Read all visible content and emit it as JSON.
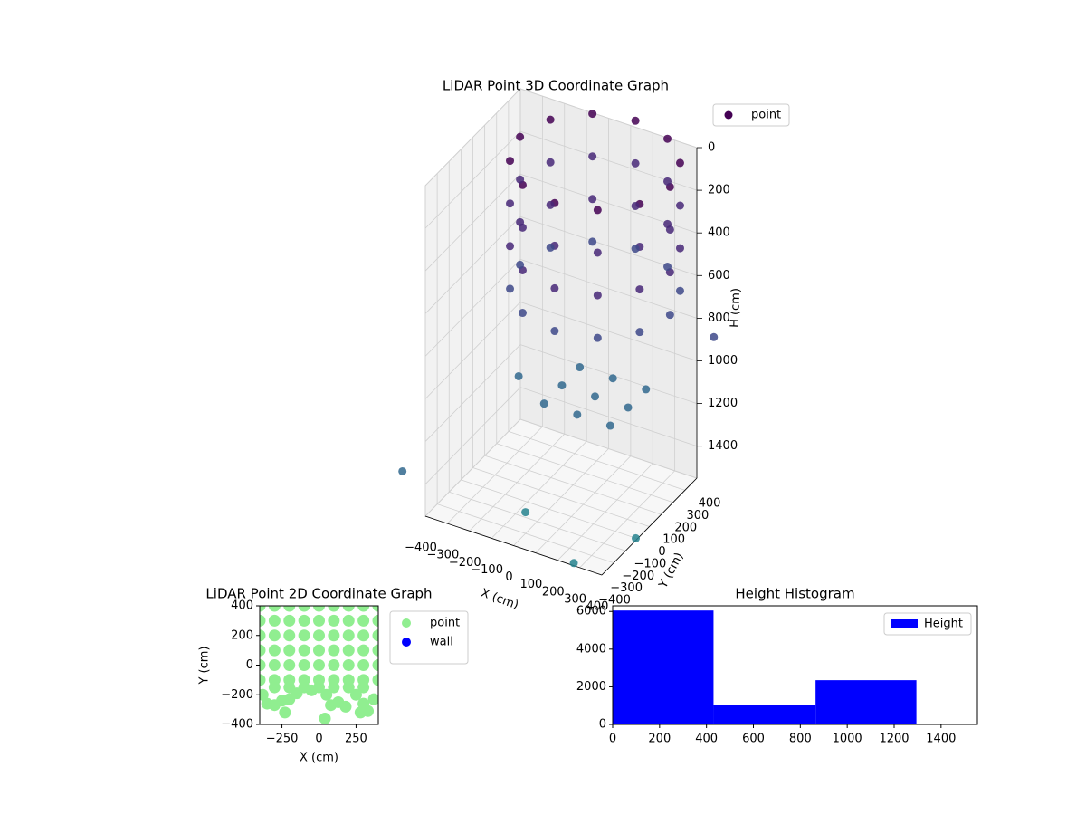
{
  "chart_data": [
    {
      "type": "scatter3d",
      "title": "LiDAR Point 3D Coordinate Graph",
      "xlabel": "X (cm)",
      "ylabel": "Y (cm)",
      "zlabel": "H (cm)",
      "colormap": "viridis",
      "legend": "upper right",
      "grid": true,
      "z_inverted": true,
      "xlim": [
        -400,
        400
      ],
      "ylim": [
        -400,
        400
      ],
      "zlim": [
        0,
        1550
      ],
      "xticks": [
        {
          "value": -400,
          "label": "−400"
        },
        {
          "value": -300,
          "label": "−300"
        },
        {
          "value": -200,
          "label": "−200"
        },
        {
          "value": -100,
          "label": "−100"
        },
        0,
        100,
        200,
        300,
        400
      ],
      "yticks": [
        {
          "value": -400,
          "label": "−400"
        },
        {
          "value": -300,
          "label": "−300"
        },
        {
          "value": -200,
          "label": "−200"
        },
        {
          "value": -100,
          "label": "−100"
        },
        0,
        100,
        200,
        300,
        400
      ],
      "zticks": [
        0,
        200,
        400,
        600,
        800,
        1000,
        1200,
        1400
      ],
      "series": [
        {
          "name": "point",
          "x": [
            440,
            394,
            270,
            100,
            -70,
            -194,
            -240,
            -194,
            -70,
            100,
            270,
            394,
            440,
            394,
            270,
            100,
            -70,
            -194,
            -240,
            -194,
            -70,
            100,
            270,
            394,
            440,
            394,
            270,
            100,
            -70,
            -194,
            -240,
            -194,
            -70,
            100,
            270,
            394,
            440,
            394,
            270,
            100,
            -70,
            -194,
            -240,
            -194,
            -70,
            100,
            270,
            394,
            100,
            250,
            -50,
            100,
            100,
            250,
            -50,
            250,
            -50,
            -450,
            500,
            300,
            -300,
            450,
            0
          ],
          "y": [
            100,
            270,
            394,
            440,
            394,
            270,
            100,
            -70,
            -194,
            -240,
            -194,
            -70,
            100,
            270,
            394,
            440,
            394,
            270,
            100,
            -70,
            -194,
            -240,
            -194,
            -70,
            100,
            270,
            394,
            440,
            394,
            270,
            100,
            -70,
            -194,
            -240,
            -194,
            -70,
            100,
            270,
            394,
            440,
            394,
            270,
            100,
            -70,
            -194,
            -240,
            -194,
            -70,
            100,
            100,
            100,
            250,
            -50,
            250,
            -50,
            -50,
            250,
            -500,
            -300,
            -450,
            200,
            450,
            -300
          ],
          "z": [
            0,
            0,
            0,
            0,
            0,
            0,
            0,
            0,
            0,
            0,
            0,
            0,
            200,
            200,
            200,
            200,
            200,
            200,
            200,
            200,
            200,
            200,
            200,
            200,
            400,
            400,
            400,
            400,
            400,
            400,
            400,
            400,
            400,
            400,
            400,
            400,
            600,
            600,
            600,
            600,
            600,
            600,
            600,
            600,
            600,
            600,
            600,
            600,
            1100,
            1100,
            1100,
            1100,
            1100,
            1100,
            1100,
            1100,
            1100,
            1300,
            1400,
            1500,
            1200,
            900,
            1450
          ]
        }
      ]
    },
    {
      "type": "scatter",
      "title": "LiDAR Point 2D Coordinate Graph",
      "xlabel": "X (cm)",
      "ylabel": "Y (cm)",
      "legend": "outside upper right",
      "xlim": [
        -400,
        400
      ],
      "ylim": [
        -400,
        400
      ],
      "xticks": [
        {
          "value": -250,
          "label": "−250"
        },
        0,
        250
      ],
      "yticks": [
        {
          "value": -400,
          "label": "−400"
        },
        {
          "value": -200,
          "label": "−200"
        },
        0,
        200,
        400
      ],
      "series": [
        {
          "name": "point",
          "color": "#90ee90",
          "x": [
            -400,
            -300,
            -200,
            -100,
            0,
            100,
            200,
            300,
            400,
            -400,
            -300,
            -200,
            -100,
            0,
            100,
            200,
            300,
            400,
            -400,
            -300,
            -200,
            -100,
            0,
            100,
            200,
            300,
            400,
            -400,
            -300,
            -200,
            -100,
            0,
            100,
            200,
            300,
            400,
            -400,
            -300,
            -200,
            -100,
            0,
            100,
            200,
            300,
            400,
            -400,
            -300,
            -200,
            -100,
            0,
            100,
            200,
            300,
            400,
            -300,
            -200,
            -100,
            0,
            100,
            200,
            300,
            -380,
            -350,
            -300,
            -250,
            -200,
            -150,
            -50,
            50,
            80,
            130,
            180,
            250,
            300,
            330,
            280,
            40,
            -230,
            370
          ],
          "y": [
            400,
            400,
            400,
            400,
            400,
            400,
            400,
            400,
            400,
            300,
            300,
            300,
            300,
            300,
            300,
            300,
            300,
            300,
            200,
            200,
            200,
            200,
            200,
            200,
            200,
            200,
            200,
            100,
            100,
            100,
            100,
            100,
            100,
            100,
            100,
            100,
            0,
            0,
            0,
            0,
            0,
            0,
            0,
            0,
            0,
            -100,
            -100,
            -100,
            -100,
            -100,
            -100,
            -100,
            -100,
            -100,
            -150,
            -150,
            -150,
            -150,
            -150,
            -150,
            -150,
            -200,
            -260,
            -270,
            -240,
            -230,
            -190,
            -170,
            -200,
            -270,
            -250,
            -280,
            -200,
            -260,
            -310,
            -320,
            -360,
            -320,
            -230
          ]
        },
        {
          "name": "wall",
          "color": "#0000ff",
          "x": [],
          "y": []
        }
      ]
    },
    {
      "type": "histogram",
      "title": "Height Histogram",
      "legend": "upper right",
      "bins": [
        0,
        430,
        865,
        1295,
        1555
      ],
      "xlim": [
        0,
        1555
      ],
      "ylim": [
        0,
        6300
      ],
      "xticks": [
        0,
        200,
        400,
        600,
        800,
        1000,
        1200,
        1400
      ],
      "yticks": [
        0,
        2000,
        4000,
        6000
      ],
      "series": [
        {
          "name": "Height",
          "color": "#0000ff",
          "values": [
            6050,
            1050,
            2350,
            30
          ]
        }
      ]
    }
  ]
}
